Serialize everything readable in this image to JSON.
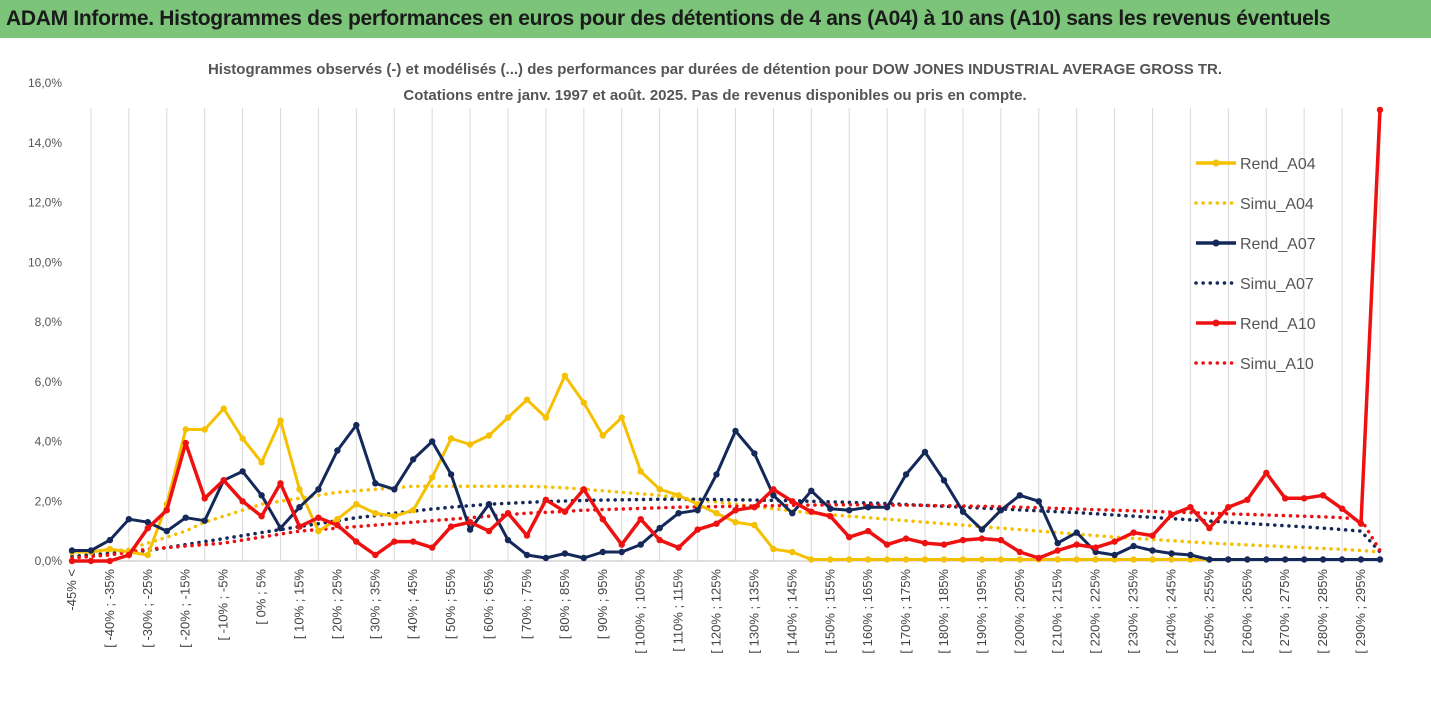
{
  "header": {
    "title": "ADAM Informe. Histogrammes des performances en euros pour des détentions de 4 ans (A04) à 10 ans (A10) sans les revenus éventuels"
  },
  "colors": {
    "A04": "#f5c000",
    "A07": "#14285a",
    "A10": "#ee1111",
    "grid": "#d9d9d9",
    "header_bg": "#7cc47a"
  },
  "chart_data": {
    "type": "line",
    "title": "Histogrammes observés (-) et modélisés (...) des performances par durées de détention pour DOW JONES INDUSTRIAL AVERAGE GROSS TR.",
    "subtitle": "Cotations entre janv. 1997 et août. 2025. Pas de revenus disponibles ou pris en compte.",
    "legend_position": "right",
    "grid": {
      "vertical": true,
      "horizontal": false
    },
    "y_axis": {
      "min": 0,
      "max": 16,
      "step": 2,
      "tick_labels": [
        "0,0%",
        "2,0%",
        "4,0%",
        "6,0%",
        "8,0%",
        "10,0%",
        "12,0%",
        "14,0%",
        "16,0%"
      ]
    },
    "x_labels": [
      "-45% <",
      "[ -40% ; -35%",
      "[ -30% ; -25%",
      "[ -20% ; -15%",
      "[ -10% ; -5%",
      "[ 0% ; 5%",
      "[ 10% ; 15%",
      "[ 20% ; 25%",
      "[ 30% ; 35%",
      "[ 40% ; 45%",
      "[ 50% ; 55%",
      "[ 60% ; 65%",
      "[ 70% ; 75%",
      "[ 80% ; 85%",
      "[ 90% ; 95%",
      "[ 100% ; 105%",
      "[ 110% ; 115%",
      "[ 120% ; 125%",
      "[ 130% ; 135%",
      "[ 140% ; 145%",
      "[ 150% ; 155%",
      "[ 160% ; 165%",
      "[ 170% ; 175%",
      "[ 180% ; 185%",
      "[ 190% ; 195%",
      "[ 200% ; 205%",
      "[ 210% ; 215%",
      "[ 220% ; 225%",
      "[ 230% ; 235%",
      "[ 240% ; 245%",
      "[ 250% ; 255%",
      "[ 260% ; 265%",
      "[ 270% ; 275%",
      "[ 280% ; 285%",
      "[ 290% ; 295%"
    ],
    "n_points": 70,
    "series": [
      {
        "name": "Rend_A04",
        "style": "solid",
        "color": "#f5c000",
        "values": [
          0.3,
          0.3,
          0.4,
          0.3,
          0.2,
          1.9,
          4.4,
          4.4,
          5.1,
          4.1,
          3.3,
          4.7,
          2.4,
          1.0,
          1.4,
          1.9,
          1.6,
          1.5,
          1.7,
          2.8,
          4.1,
          3.9,
          4.2,
          4.8,
          5.4,
          4.8,
          6.2,
          5.3,
          4.2,
          4.8,
          3.0,
          2.4,
          2.2,
          1.9,
          1.6,
          1.3,
          1.2,
          0.4,
          0.3,
          0.05,
          0.05,
          0.05,
          0.05,
          0.05,
          0.05,
          0.05,
          0.05,
          0.05,
          0.05,
          0.05,
          0.05,
          0.05,
          0.05,
          0.05,
          0.05,
          0.05,
          0.05,
          0.05,
          0.05,
          0.05,
          0.05,
          0.05,
          null,
          null,
          null,
          null,
          null,
          null,
          null,
          null
        ]
      },
      {
        "name": "Simu_A04",
        "style": "dotted",
        "color": "#f5c000",
        "values": [
          0.15,
          0.2,
          0.3,
          0.4,
          0.6,
          0.8,
          1.0,
          1.3,
          1.5,
          1.7,
          1.9,
          2.0,
          2.1,
          2.2,
          2.3,
          2.35,
          2.4,
          2.45,
          2.5,
          2.5,
          2.5,
          2.5,
          2.5,
          2.5,
          2.5,
          2.48,
          2.45,
          2.4,
          2.35,
          2.3,
          2.25,
          2.2,
          2.12,
          2.05,
          1.98,
          1.9,
          1.82,
          1.75,
          1.68,
          1.6,
          1.55,
          1.5,
          1.45,
          1.4,
          1.35,
          1.3,
          1.25,
          1.2,
          1.15,
          1.1,
          1.05,
          1.0,
          0.95,
          0.9,
          0.85,
          0.8,
          0.76,
          0.72,
          0.68,
          0.64,
          0.6,
          0.57,
          0.54,
          0.51,
          0.48,
          0.45,
          0.42,
          0.39,
          0.35,
          0.3
        ]
      },
      {
        "name": "Rend_A07",
        "style": "solid",
        "color": "#14285a",
        "values": [
          0.35,
          0.35,
          0.7,
          1.4,
          1.3,
          1.0,
          1.45,
          1.35,
          2.7,
          3.0,
          2.2,
          1.1,
          1.8,
          2.4,
          3.7,
          4.55,
          2.6,
          2.4,
          3.4,
          4.0,
          2.9,
          1.05,
          1.9,
          0.7,
          0.2,
          0.1,
          0.25,
          0.1,
          0.3,
          0.3,
          0.55,
          1.1,
          1.6,
          1.7,
          2.9,
          4.35,
          3.6,
          2.2,
          1.6,
          2.35,
          1.75,
          1.7,
          1.8,
          1.8,
          2.9,
          3.65,
          2.7,
          1.65,
          1.05,
          1.7,
          2.2,
          2.0,
          0.6,
          0.95,
          0.3,
          0.2,
          0.5,
          0.35,
          0.25,
          0.2,
          0.05,
          0.05,
          0.05,
          0.05,
          0.05,
          0.05,
          0.05,
          0.05,
          0.05,
          0.05
        ]
      },
      {
        "name": "Simu_A07",
        "style": "dotted",
        "color": "#14285a",
        "values": [
          0.15,
          0.2,
          0.25,
          0.3,
          0.35,
          0.45,
          0.55,
          0.65,
          0.75,
          0.85,
          0.95,
          1.05,
          1.15,
          1.25,
          1.35,
          1.45,
          1.52,
          1.6,
          1.67,
          1.74,
          1.8,
          1.85,
          1.9,
          1.93,
          1.96,
          1.99,
          2.01,
          2.03,
          2.04,
          2.05,
          2.06,
          2.07,
          2.07,
          2.07,
          2.06,
          2.05,
          2.04,
          2.03,
          2.02,
          2.0,
          1.98,
          1.96,
          1.94,
          1.92,
          1.89,
          1.86,
          1.83,
          1.8,
          1.77,
          1.74,
          1.71,
          1.68,
          1.65,
          1.62,
          1.58,
          1.54,
          1.5,
          1.46,
          1.42,
          1.38,
          1.34,
          1.3,
          1.26,
          1.22,
          1.18,
          1.14,
          1.1,
          1.05,
          1.0,
          0.3
        ]
      },
      {
        "name": "Rend_A10",
        "style": "solid",
        "color": "#ee1111",
        "values": [
          0.0,
          0.0,
          0.0,
          0.2,
          1.1,
          1.7,
          3.95,
          2.1,
          2.7,
          2.0,
          1.5,
          2.6,
          1.15,
          1.45,
          1.2,
          0.65,
          0.2,
          0.65,
          0.65,
          0.45,
          1.15,
          1.3,
          1.0,
          1.6,
          0.85,
          2.05,
          1.65,
          2.4,
          1.4,
          0.55,
          1.4,
          0.7,
          0.45,
          1.05,
          1.25,
          1.7,
          1.8,
          2.4,
          2.0,
          1.65,
          1.5,
          0.8,
          1.0,
          0.55,
          0.75,
          0.6,
          0.55,
          0.7,
          0.75,
          0.7,
          0.3,
          0.1,
          0.35,
          0.55,
          0.45,
          0.65,
          0.95,
          0.85,
          1.55,
          1.8,
          1.1,
          1.8,
          2.05,
          2.95,
          2.1,
          2.1,
          2.2,
          1.75,
          1.25,
          15.1
        ]
      },
      {
        "name": "Simu_A10",
        "style": "dotted",
        "color": "#ee1111",
        "values": [
          0.1,
          0.15,
          0.2,
          0.3,
          0.4,
          0.45,
          0.5,
          0.55,
          0.6,
          0.7,
          0.8,
          0.9,
          1.0,
          1.05,
          1.1,
          1.15,
          1.2,
          1.25,
          1.3,
          1.35,
          1.4,
          1.45,
          1.5,
          1.55,
          1.6,
          1.63,
          1.66,
          1.7,
          1.72,
          1.74,
          1.76,
          1.78,
          1.8,
          1.81,
          1.82,
          1.83,
          1.84,
          1.85,
          1.86,
          1.87,
          1.88,
          1.88,
          1.88,
          1.87,
          1.87,
          1.86,
          1.85,
          1.84,
          1.83,
          1.82,
          1.8,
          1.78,
          1.76,
          1.74,
          1.72,
          1.7,
          1.68,
          1.66,
          1.64,
          1.62,
          1.6,
          1.58,
          1.56,
          1.54,
          1.52,
          1.5,
          1.48,
          1.45,
          1.4,
          0.35
        ]
      }
    ]
  }
}
